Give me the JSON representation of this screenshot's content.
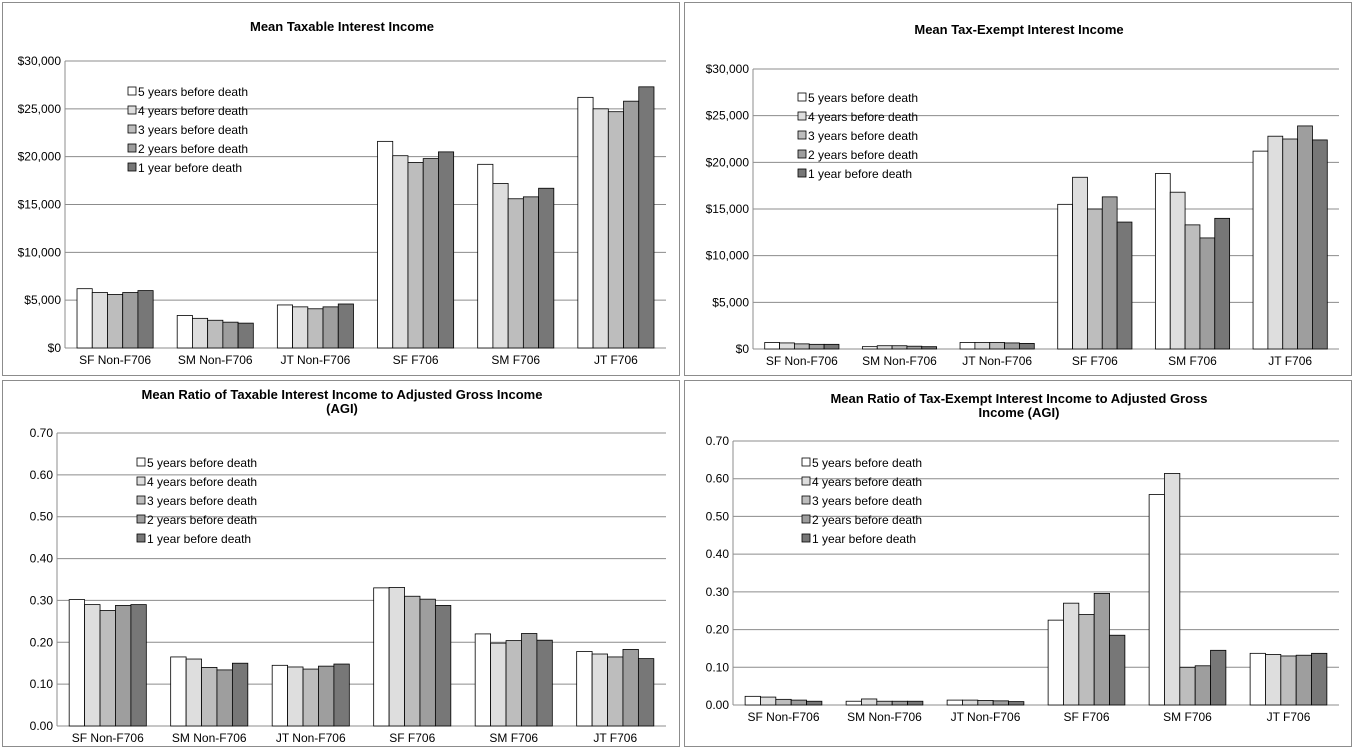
{
  "chart_data": [
    {
      "type": "bar",
      "title": [
        "Mean Taxable Interest Income"
      ],
      "categories": [
        "SF Non-F706",
        "SM Non-F706",
        "JT Non-F706",
        "SF F706",
        "SM F706",
        "JT F706"
      ],
      "yticks": [
        "$0",
        "$5,000",
        "$10,000",
        "$15,000",
        "$20,000",
        "$25,000",
        "$30,000"
      ],
      "ylim": [
        0,
        30000
      ],
      "grid": true,
      "legend_position": "upper-left",
      "series": [
        {
          "name": "5 years before death",
          "color": "#ffffff",
          "values": [
            6200,
            3400,
            4500,
            21600,
            19200,
            26200
          ]
        },
        {
          "name": "4 years before death",
          "color": "#dedede",
          "values": [
            5800,
            3100,
            4300,
            20100,
            17200,
            25000
          ]
        },
        {
          "name": "3 years before death",
          "color": "#bdbdbd",
          "values": [
            5600,
            2900,
            4100,
            19400,
            15600,
            24700
          ]
        },
        {
          "name": "2 years before death",
          "color": "#9e9e9e",
          "values": [
            5800,
            2700,
            4300,
            19800,
            15800,
            25800
          ]
        },
        {
          "name": "1 year before death",
          "color": "#777777",
          "values": [
            6000,
            2600,
            4600,
            20500,
            16700,
            27300
          ]
        }
      ]
    },
    {
      "type": "bar",
      "title": [
        "Mean Tax-Exempt Interest Income"
      ],
      "categories": [
        "SF Non-F706",
        "SM Non-F706",
        "JT Non-F706",
        "SF F706",
        "SM F706",
        "JT F706"
      ],
      "yticks": [
        "$0",
        "$5,000",
        "$10,000",
        "$15,000",
        "$20,000",
        "$25,000",
        "$30,000"
      ],
      "ylim": [
        0,
        30000
      ],
      "grid": true,
      "legend_position": "upper-left",
      "series": [
        {
          "name": "5 years before death",
          "color": "#ffffff",
          "values": [
            700,
            250,
            700,
            15500,
            18800,
            21200
          ]
        },
        {
          "name": "4 years before death",
          "color": "#dedede",
          "values": [
            650,
            350,
            700,
            18400,
            16800,
            22800
          ]
        },
        {
          "name": "3 years before death",
          "color": "#bdbdbd",
          "values": [
            550,
            350,
            700,
            15000,
            13300,
            22500
          ]
        },
        {
          "name": "2 years before death",
          "color": "#9e9e9e",
          "values": [
            500,
            300,
            650,
            16300,
            11900,
            23900
          ]
        },
        {
          "name": "1 year before death",
          "color": "#777777",
          "values": [
            500,
            250,
            600,
            13600,
            14000,
            22400
          ]
        }
      ]
    },
    {
      "type": "bar",
      "title": [
        "Mean Ratio of Taxable Interest Income to Adjusted Gross Income",
        "(AGI)"
      ],
      "categories": [
        "SF Non-F706",
        "SM Non-F706",
        "JT Non-F706",
        "SF F706",
        "SM F706",
        "JT F706"
      ],
      "yticks": [
        "0.00",
        "0.10",
        "0.20",
        "0.30",
        "0.40",
        "0.50",
        "0.60",
        "0.70"
      ],
      "ylim": [
        0,
        0.7
      ],
      "grid": true,
      "legend_position": "upper-left",
      "series": [
        {
          "name": "5 years before death",
          "color": "#ffffff",
          "values": [
            0.302,
            0.165,
            0.145,
            0.33,
            0.22,
            0.178
          ]
        },
        {
          "name": "4 years before death",
          "color": "#dedede",
          "values": [
            0.29,
            0.16,
            0.141,
            0.331,
            0.198,
            0.172
          ]
        },
        {
          "name": "3 years before death",
          "color": "#bdbdbd",
          "values": [
            0.276,
            0.14,
            0.136,
            0.31,
            0.204,
            0.165
          ]
        },
        {
          "name": "2 years before death",
          "color": "#9e9e9e",
          "values": [
            0.288,
            0.134,
            0.143,
            0.303,
            0.221,
            0.183
          ]
        },
        {
          "name": "1 year before death",
          "color": "#777777",
          "values": [
            0.29,
            0.15,
            0.148,
            0.288,
            0.205,
            0.161
          ]
        }
      ]
    },
    {
      "type": "bar",
      "title": [
        "Mean Ratio of Tax-Exempt Interest Income to Adjusted Gross",
        "Income (AGI)"
      ],
      "categories": [
        "SF Non-F706",
        "SM Non-F706",
        "JT Non-F706",
        "SF F706",
        "SM F706",
        "JT F706"
      ],
      "yticks": [
        "0.00",
        "0.10",
        "0.20",
        "0.30",
        "0.40",
        "0.50",
        "0.60",
        "0.70"
      ],
      "ylim": [
        0,
        0.7
      ],
      "grid": true,
      "legend_position": "upper-left",
      "series": [
        {
          "name": "5 years before death",
          "color": "#ffffff",
          "values": [
            0.023,
            0.01,
            0.013,
            0.225,
            0.558,
            0.137
          ]
        },
        {
          "name": "4 years before death",
          "color": "#dedede",
          "values": [
            0.021,
            0.016,
            0.013,
            0.27,
            0.614,
            0.134
          ]
        },
        {
          "name": "3 years before death",
          "color": "#bdbdbd",
          "values": [
            0.015,
            0.01,
            0.012,
            0.24,
            0.1,
            0.13
          ]
        },
        {
          "name": "2 years before death",
          "color": "#9e9e9e",
          "values": [
            0.013,
            0.01,
            0.011,
            0.296,
            0.104,
            0.132
          ]
        },
        {
          "name": "1 year before death",
          "color": "#777777",
          "values": [
            0.01,
            0.01,
            0.009,
            0.185,
            0.145,
            0.137
          ]
        }
      ]
    }
  ]
}
